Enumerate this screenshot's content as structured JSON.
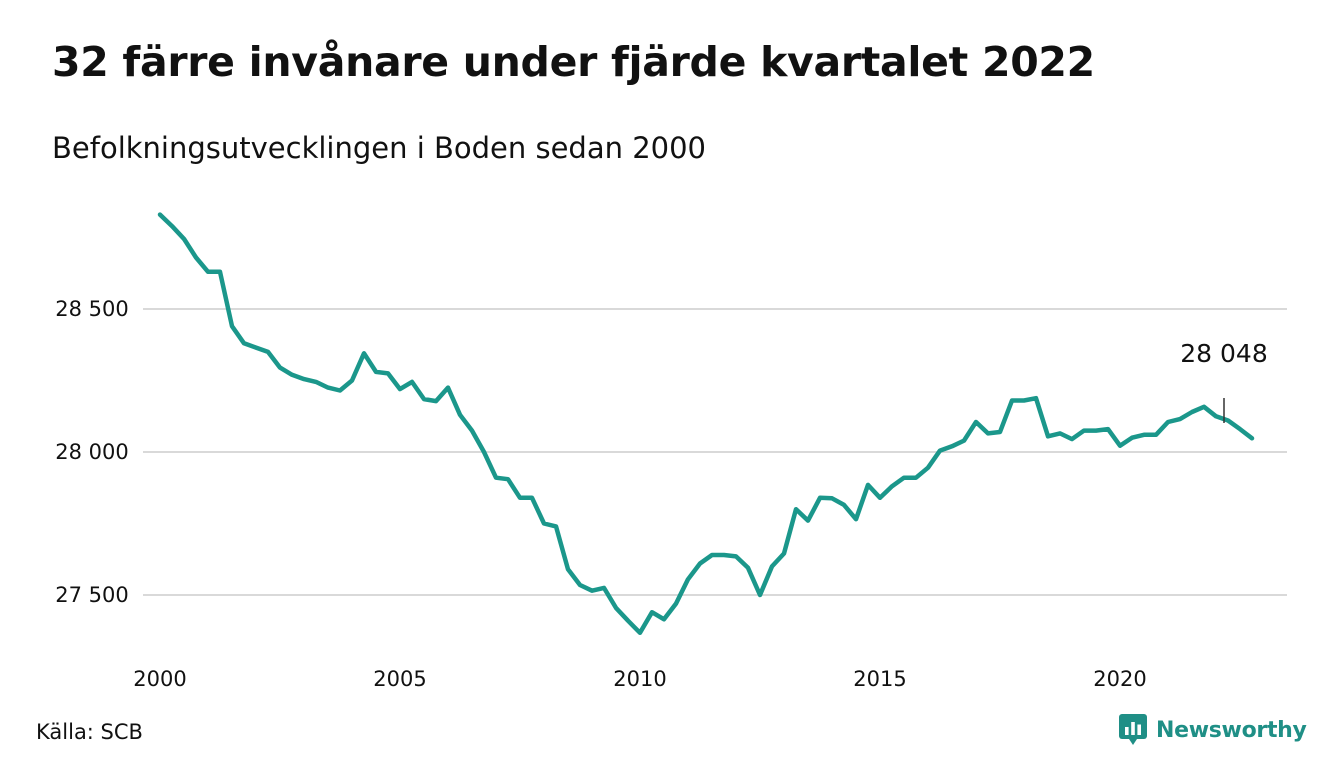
{
  "title": "32 färre invånare under fjärde kvartalet 2022",
  "subtitle": "Befolkningsutvecklingen i Boden sedan 2000",
  "source": "Källa: SCB",
  "brand": {
    "name": "Newsworthy",
    "icon": "newsworthy-logo-icon"
  },
  "colors": {
    "line": "#1b978b",
    "grid": "#d9d9d9",
    "brand": "#1f8f86"
  },
  "chart_data": {
    "type": "line",
    "x_start": 2000.0,
    "x_step": 0.25,
    "xlim": [
      2000,
      2023
    ],
    "ylim": [
      27350,
      28850
    ],
    "x_ticks": [
      2000,
      2005,
      2010,
      2015,
      2020
    ],
    "x_tick_labels": [
      "2000",
      "2005",
      "2010",
      "2015",
      "2020"
    ],
    "y_ticks": [
      27500,
      28000,
      28500
    ],
    "y_tick_labels": [
      "27 500",
      "28 000",
      "28 500"
    ],
    "grid": "horizontal",
    "end_label": "28 048",
    "values": [
      28830,
      28790,
      28745,
      28680,
      28630,
      28630,
      28440,
      28380,
      28365,
      28350,
      28295,
      28270,
      28255,
      28245,
      28225,
      28215,
      28250,
      28345,
      28280,
      28275,
      28220,
      28245,
      28185,
      28178,
      28225,
      28130,
      28075,
      28000,
      27910,
      27905,
      27840,
      27840,
      27750,
      27740,
      27590,
      27535,
      27515,
      27525,
      27455,
      27410,
      27368,
      27440,
      27415,
      27470,
      27555,
      27610,
      27640,
      27640,
      27635,
      27595,
      27500,
      27600,
      27645,
      27800,
      27760,
      27840,
      27838,
      27815,
      27765,
      27885,
      27840,
      27880,
      27910,
      27910,
      27945,
      28005,
      28020,
      28040,
      28105,
      28065,
      28070,
      28180,
      28180,
      28188,
      28055,
      28065,
      28045,
      28075,
      28075,
      28080,
      28022,
      28050,
      28060,
      28060,
      28105,
      28115,
      28140,
      28158,
      28125,
      28110,
      28080,
      28048
    ]
  }
}
